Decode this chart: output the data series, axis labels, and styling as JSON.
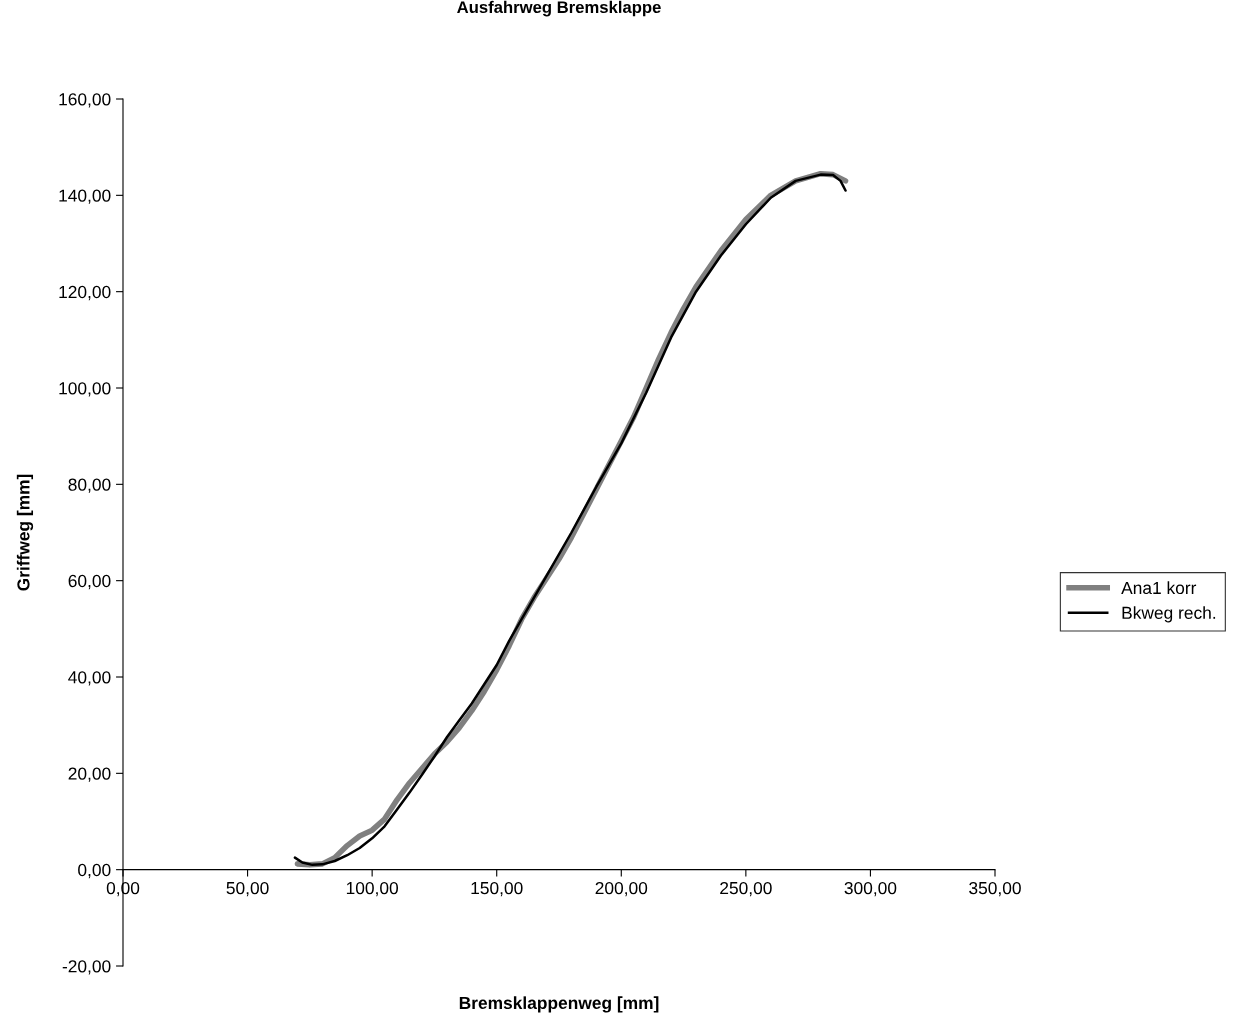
{
  "chart_data": {
    "type": "line",
    "title": "Ausfahrweg Bremsklappe",
    "xlabel": "Bremsklappenweg [mm]",
    "ylabel": "Griffweg [mm]",
    "xlim": [
      0,
      350
    ],
    "ylim": [
      -20,
      160
    ],
    "xticks": [
      {
        "value": 0,
        "label": "0,00"
      },
      {
        "value": 50,
        "label": "50,00"
      },
      {
        "value": 100,
        "label": "100,00"
      },
      {
        "value": 150,
        "label": "150,00"
      },
      {
        "value": 200,
        "label": "200,00"
      },
      {
        "value": 250,
        "label": "250,00"
      },
      {
        "value": 300,
        "label": "300,00"
      },
      {
        "value": 350,
        "label": "350,00"
      }
    ],
    "yticks": [
      {
        "value": -20,
        "label": "-20,00"
      },
      {
        "value": 0,
        "label": "0,00"
      },
      {
        "value": 20,
        "label": "20,00"
      },
      {
        "value": 40,
        "label": "40,00"
      },
      {
        "value": 60,
        "label": "60,00"
      },
      {
        "value": 80,
        "label": "80,00"
      },
      {
        "value": 100,
        "label": "100,00"
      },
      {
        "value": 120,
        "label": "120,00"
      },
      {
        "value": 140,
        "label": "140,00"
      },
      {
        "value": 160,
        "label": "160,00"
      }
    ],
    "grid": false,
    "legend": "right",
    "marker": "none",
    "line_style": "solid",
    "series": [
      {
        "name": "Ana1 korr",
        "color": "#808080",
        "x": [
          70,
          75,
          80,
          85,
          90,
          95,
          100,
          105,
          110,
          115,
          120,
          125,
          130,
          135,
          140,
          145,
          150,
          155,
          160,
          165,
          170,
          175,
          180,
          185,
          190,
          195,
          200,
          205,
          210,
          215,
          220,
          225,
          230,
          240,
          250,
          260,
          270,
          280,
          285,
          290
        ],
        "values": [
          1.2,
          1.0,
          1.2,
          2.5,
          5,
          7,
          8.2,
          10.5,
          14.5,
          18,
          21,
          24,
          26.5,
          29.5,
          33,
          37,
          41.5,
          46.5,
          52,
          56.5,
          60.5,
          64.5,
          69,
          74,
          79,
          84,
          89,
          94,
          100,
          106,
          111.5,
          116.5,
          121,
          128.5,
          135,
          140,
          143,
          144.5,
          144.3,
          143
        ]
      },
      {
        "name": "Bkweg rech.",
        "color": "#000000",
        "x": [
          69,
          72,
          76,
          80,
          85,
          90,
          95,
          100,
          105,
          110,
          115,
          120,
          125,
          130,
          135,
          140,
          145,
          150,
          155,
          160,
          170,
          180,
          190,
          200,
          210,
          220,
          230,
          240,
          250,
          260,
          270,
          280,
          285,
          288,
          290
        ],
        "values": [
          2.5,
          1.5,
          1.0,
          1.1,
          1.8,
          3,
          4.5,
          6.5,
          9,
          12.5,
          16,
          19.7,
          23.5,
          27.5,
          31,
          34.5,
          38.5,
          42.5,
          47.5,
          52,
          61,
          70,
          79.5,
          88.5,
          99,
          110.5,
          120,
          127.5,
          134,
          139.5,
          143,
          144.3,
          144.2,
          143,
          141
        ]
      }
    ]
  }
}
